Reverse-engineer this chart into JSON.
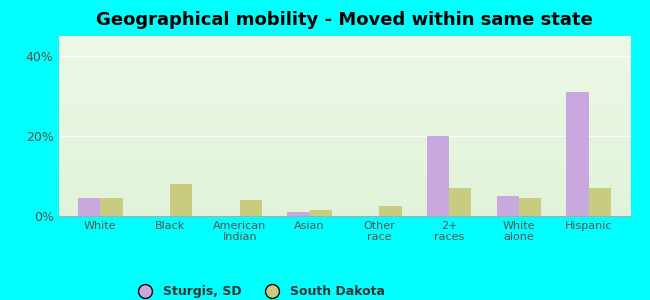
{
  "title": "Geographical mobility - Moved within same state",
  "categories": [
    "White",
    "Black",
    "American\nIndian",
    "Asian",
    "Other\nrace",
    "2+\nraces",
    "White\nalone",
    "Hispanic"
  ],
  "sturgis_values": [
    4.5,
    0.0,
    0.0,
    1.0,
    0.0,
    20.0,
    5.0,
    31.0
  ],
  "sd_values": [
    4.5,
    8.0,
    4.0,
    1.5,
    2.5,
    7.0,
    4.5,
    7.0
  ],
  "sturgis_color": "#c9a8e0",
  "sd_color": "#c8cc80",
  "background_color": "#00ffff",
  "ylabel_ticks": [
    "0%",
    "20%",
    "40%"
  ],
  "yticks": [
    0,
    20,
    40
  ],
  "ylim": [
    0,
    45
  ],
  "legend_labels": [
    "Sturgis, SD",
    "South Dakota"
  ],
  "title_fontsize": 13,
  "bar_width": 0.32,
  "gradient_colors": [
    "#d0ecc8",
    "#e8f8e0",
    "#dff0f8",
    "#f0fafe"
  ],
  "grid_color": "#ffffff"
}
